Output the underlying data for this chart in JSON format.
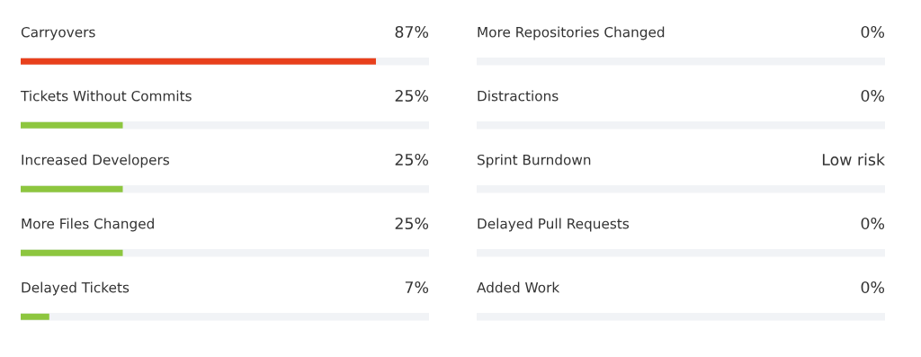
{
  "chart_data": [
    {
      "type": "bar",
      "orientation": "horizontal",
      "categories": [
        "Carryovers",
        "Tickets Without Commits",
        "Increased Developers",
        "More Files Changed",
        "Delayed Tickets"
      ],
      "values": [
        87,
        25,
        25,
        25,
        7
      ],
      "colors": [
        "#e8401c",
        "#8dc63f",
        "#8dc63f",
        "#8dc63f",
        "#8dc63f"
      ],
      "value_labels": [
        "87%",
        "25%",
        "25%",
        "25%",
        "7%"
      ],
      "xlim": [
        0,
        100
      ],
      "tick_labels": false,
      "legend": false
    },
    {
      "type": "other",
      "categories": [
        "More Repositories Changed",
        "Distractions",
        "Sprint Burndown",
        "Delayed Pull Requests",
        "Added Work"
      ],
      "values": [
        0,
        0,
        null,
        0,
        0
      ],
      "colors": [
        "#8dc63f",
        "#8dc63f",
        "#8dc63f",
        "#8dc63f",
        "#8dc63f"
      ],
      "value_labels": [
        "0%",
        "0%",
        "Low risk",
        "0%",
        "0%"
      ],
      "legend": false
    }
  ]
}
